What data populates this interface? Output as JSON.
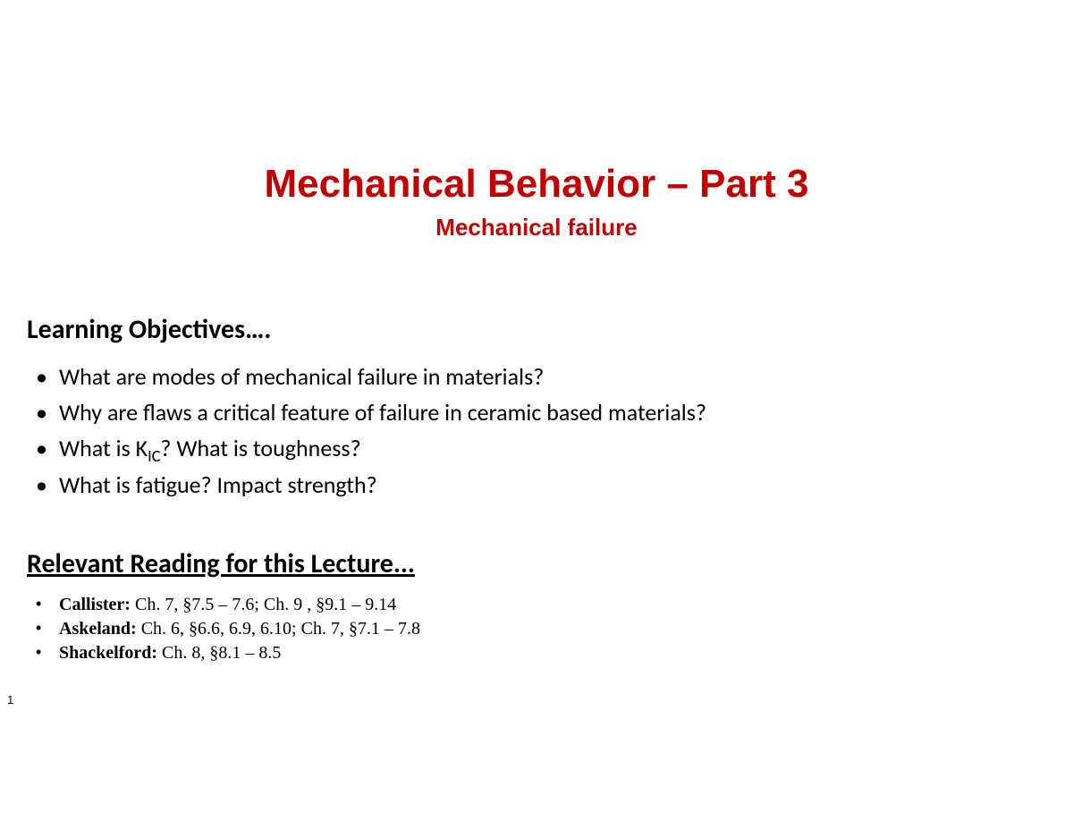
{
  "colors": {
    "title_color": "#c00000",
    "text_color": "#000000",
    "background": "#ffffff"
  },
  "typography": {
    "title_fontsize": 44,
    "subtitle_fontsize": 26,
    "heading_fontsize": 30,
    "objective_fontsize": 26,
    "reading_fontsize": 20,
    "title_family": "Arial",
    "body_family": "Calibri",
    "reading_family": "Times New Roman"
  },
  "header": {
    "title": "Mechanical Behavior – Part 3",
    "subtitle": "Mechanical failure"
  },
  "objectives": {
    "heading": "Learning Objectives….",
    "items": [
      "What are modes of mechanical failure in materials?",
      "Why are flaws a critical feature of failure in ceramic based materials?",
      "What is K__SUBIC__? What is toughness?",
      "What is fatigue? Impact strength?"
    ],
    "kic_base": "K",
    "kic_sub": "IC"
  },
  "reading": {
    "heading": "Relevant Reading for this Lecture...",
    "items": [
      {
        "author": "Callister:",
        "refs": " Ch. 7, §7.5 – 7.6; Ch. 9 , §9.1 – 9.14"
      },
      {
        "author": "Askeland:",
        "refs": " Ch. 6, §6.6, 6.9, 6.10; Ch. 7, §7.1 – 7.8"
      },
      {
        "author": "Shackelford:",
        "refs": " Ch. 8, §8.1 – 8.5"
      }
    ]
  },
  "page_number": "1"
}
